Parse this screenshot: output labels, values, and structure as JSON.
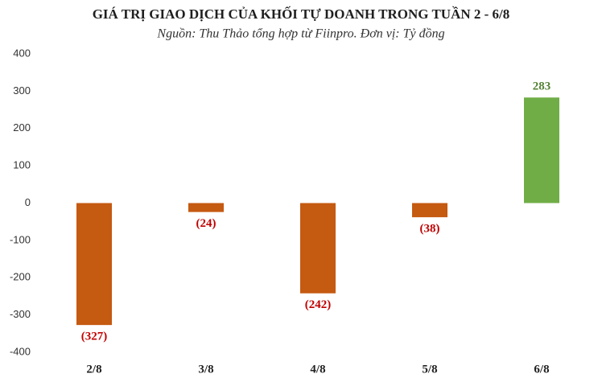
{
  "chart_data": {
    "type": "bar",
    "title": "GIÁ TRỊ GIAO DỊCH CỦA KHỐI TỰ DOANH TRONG TUẦN 2 - 6/8",
    "subtitle": "Nguồn: Thu Thảo tổng hợp từ Fiinpro. Đơn vị: Tỷ đồng",
    "categories": [
      "2/8",
      "3/8",
      "4/8",
      "5/8",
      "6/8"
    ],
    "values": [
      -327,
      -24,
      -242,
      -38,
      283
    ],
    "value_labels": [
      "(327)",
      "(24)",
      "(242)",
      "(38)",
      "283"
    ],
    "colors": [
      "#c55a11",
      "#c55a11",
      "#c55a11",
      "#c55a11",
      "#70ad47"
    ],
    "label_colors": [
      "#c00000",
      "#c00000",
      "#c00000",
      "#c00000",
      "#548235"
    ],
    "ylim": [
      -400,
      400
    ],
    "yticks": [
      -400,
      -300,
      -200,
      -100,
      0,
      100,
      200,
      300,
      400
    ],
    "grid": false
  }
}
